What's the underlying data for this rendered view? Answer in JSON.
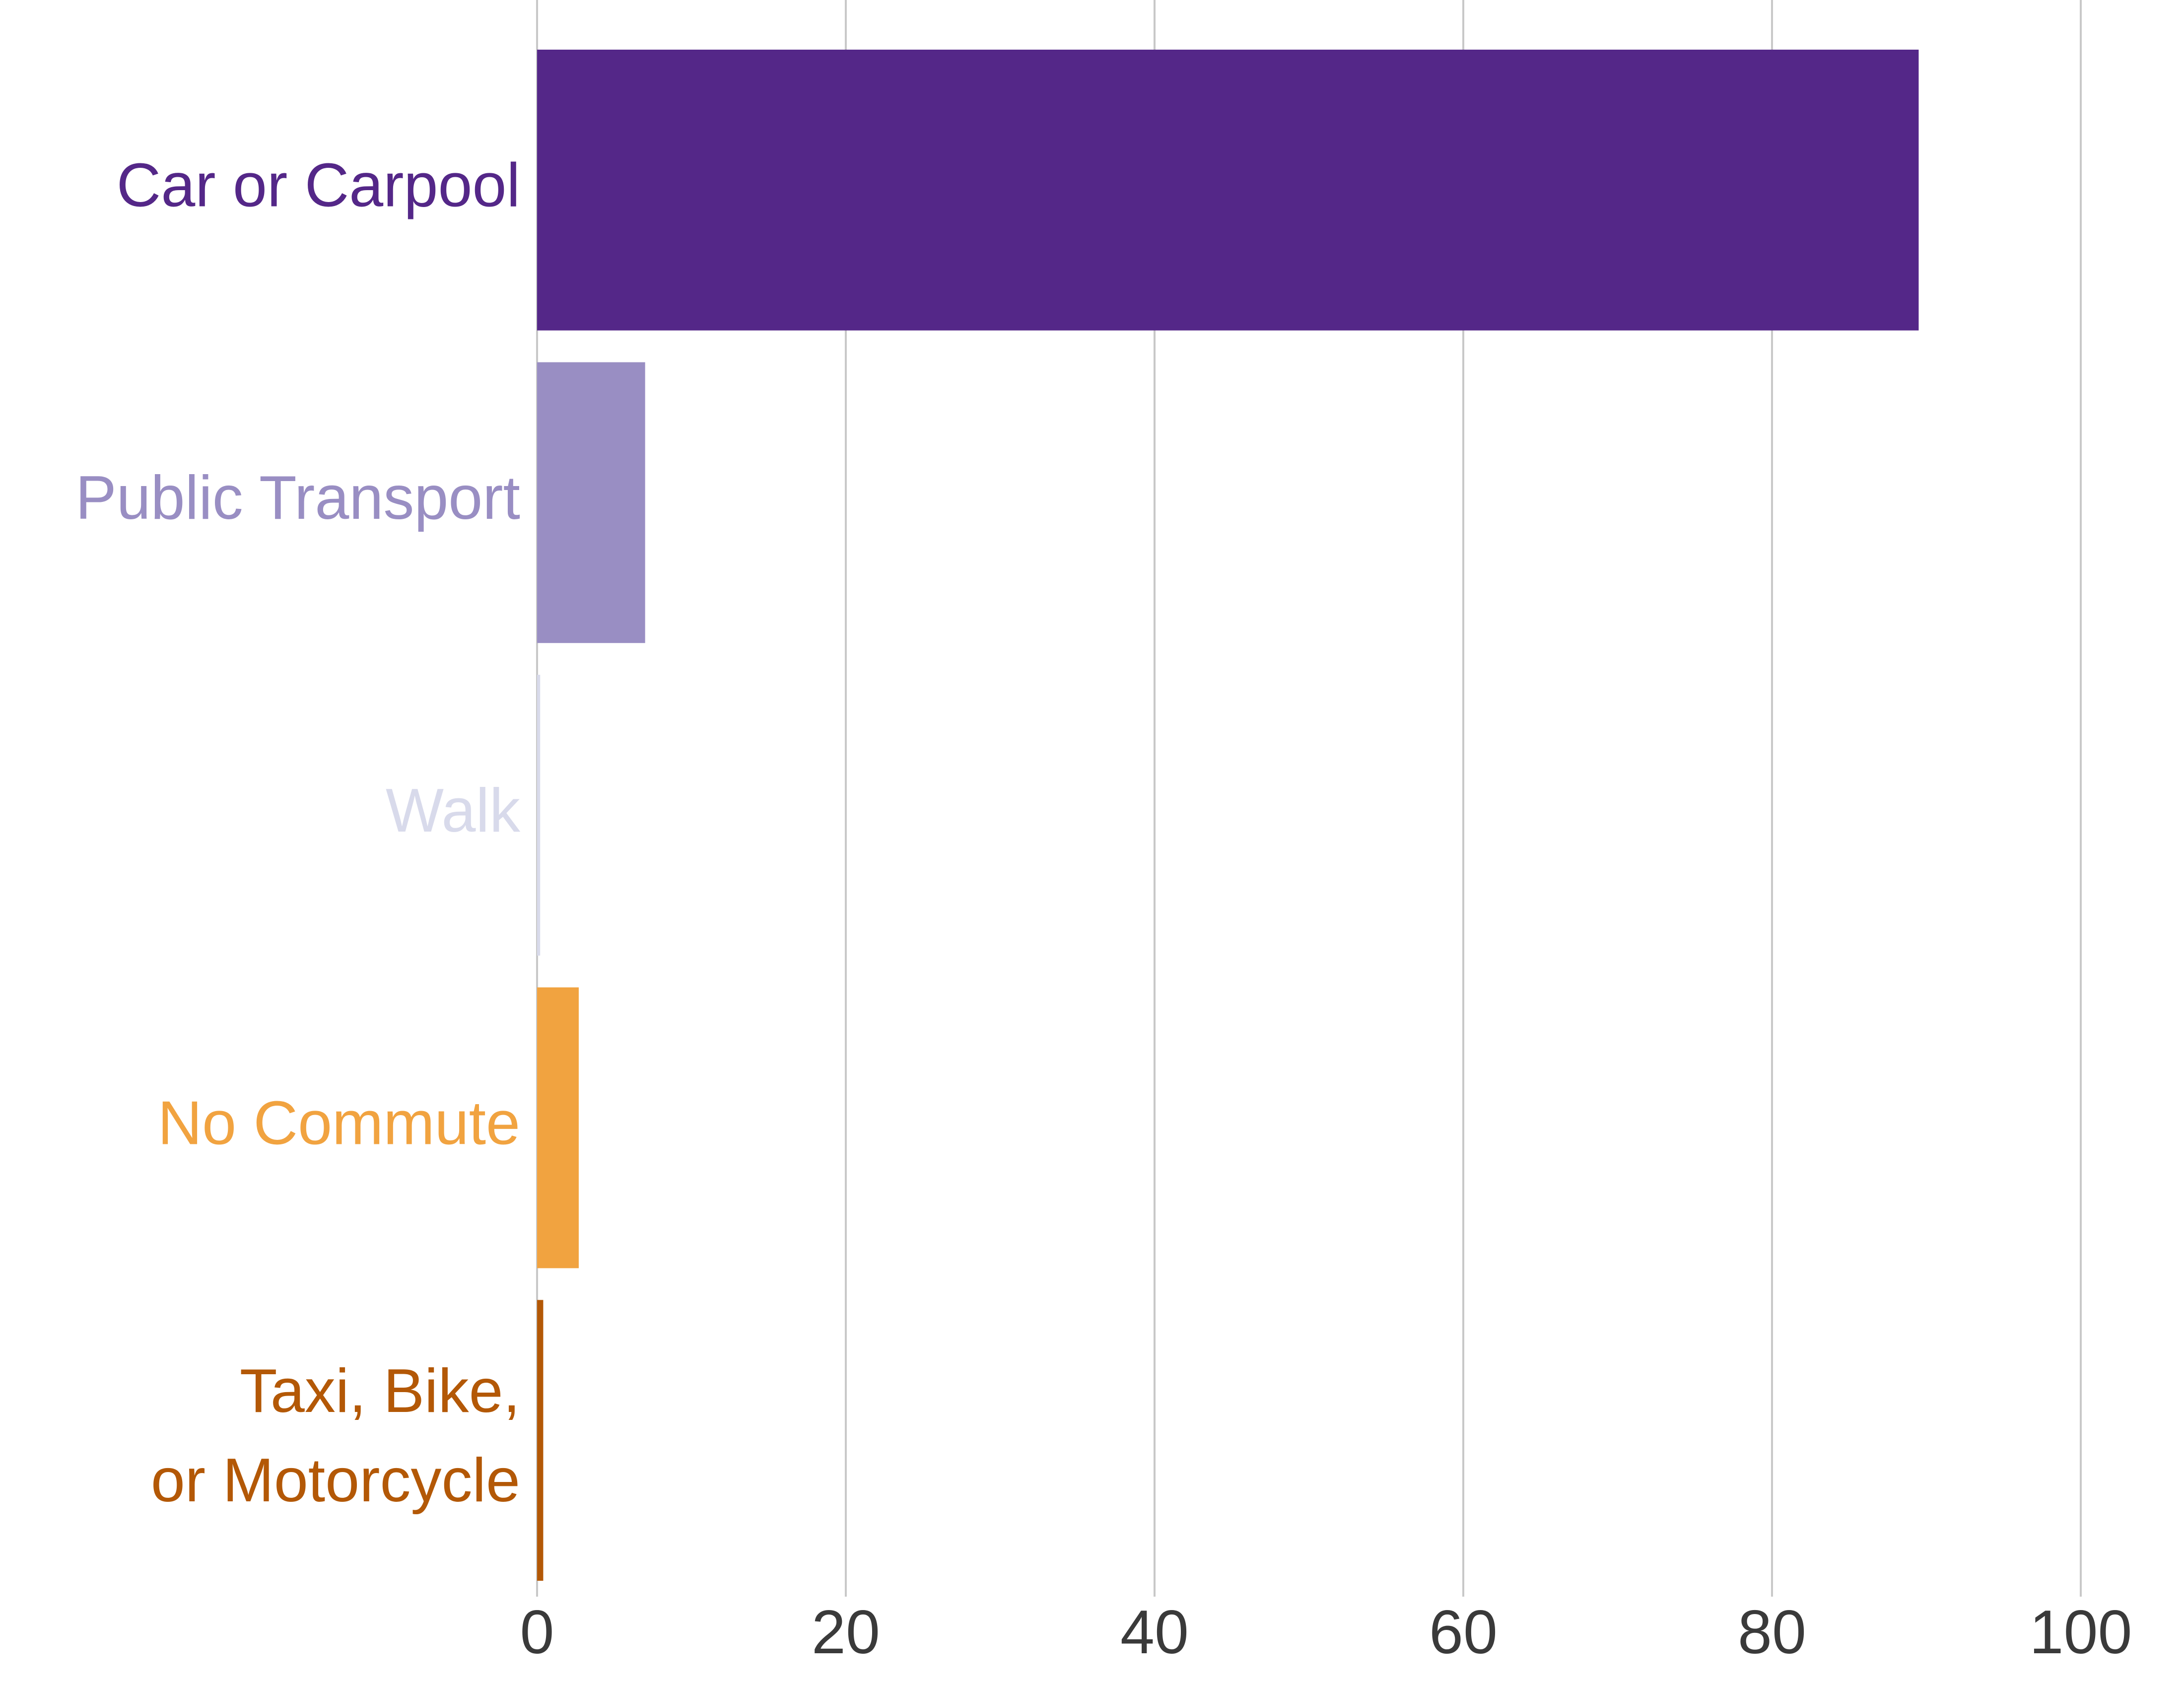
{
  "chart_data": {
    "type": "bar",
    "orientation": "horizontal",
    "title": "",
    "xlabel": "",
    "ylabel": "",
    "categories": [
      [
        "Car or Carpool"
      ],
      [
        "Public Transport"
      ],
      [
        "Walk"
      ],
      [
        "No Commute"
      ],
      [
        "Taxi, Bike,",
        "or Motorcycle"
      ]
    ],
    "values": [
      89.5,
      7.0,
      0.2,
      2.7,
      0.4
    ],
    "colors": [
      "#542788",
      "#998ec3",
      "#d8daeb",
      "#f1a340",
      "#b35806"
    ],
    "xlim": [
      0,
      100
    ],
    "xticks": [
      0,
      20,
      40,
      60,
      80,
      100
    ],
    "grid": "vertical",
    "legend": "none"
  }
}
